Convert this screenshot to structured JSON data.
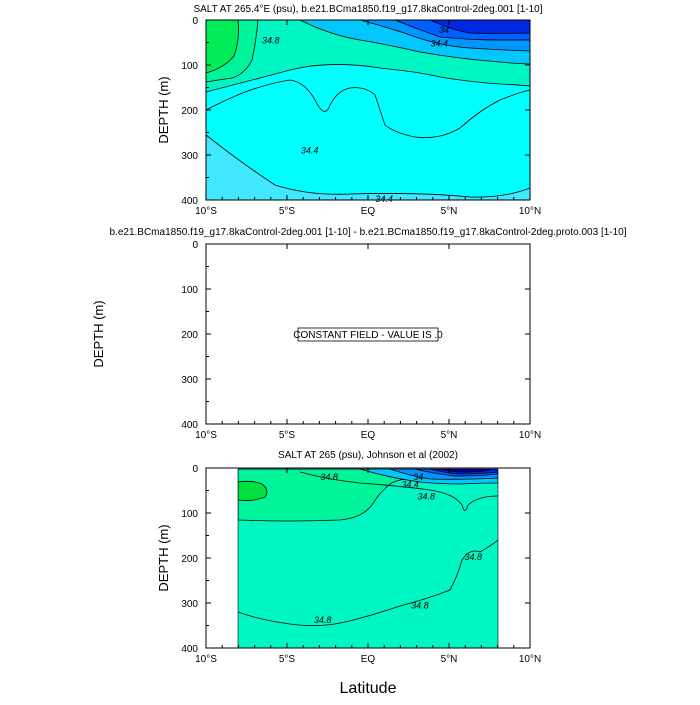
{
  "chart_data": [
    {
      "type": "contour",
      "title": "SALT AT 265.4°E (psu), b.e21.BCma1850.f19_g17.8kaControl-2deg.001 [1-10]",
      "ylabel": "DEPTH (m)",
      "xlabel": "",
      "xlim": [
        -10,
        10
      ],
      "ylim": [
        400,
        0
      ],
      "x_ticks": [
        -10,
        -5,
        0,
        5,
        10
      ],
      "x_tick_labels": [
        "10°S",
        "5°S",
        "EQ",
        "5°N",
        "10°N"
      ],
      "y_ticks": [
        0,
        100,
        200,
        300,
        400
      ],
      "y_tick_labels": [
        "0",
        "100",
        "200",
        "300",
        "400"
      ],
      "contour_labels": [
        {
          "text": "34.8",
          "lat": -6.0,
          "depth": 45
        },
        {
          "text": "34",
          "lat": 4.7,
          "depth": 22
        },
        {
          "text": "34.4",
          "lat": 4.4,
          "depth": 52
        },
        {
          "text": "34.4",
          "lat": -3.6,
          "depth": 290
        },
        {
          "text": "34.4",
          "lat": 1.0,
          "depth": 398
        }
      ]
    },
    {
      "type": "contour",
      "title": "b.e21.BCma1850.f19_g17.8kaControl-2deg.001 [1-10] - b.e21.BCma1850.f19_g17.8kaControl-2deg.proto.003 [1-10]",
      "ylabel": "DEPTH (m)",
      "xlabel": "",
      "xlim": [
        -10,
        10
      ],
      "ylim": [
        400,
        0
      ],
      "x_ticks": [
        -10,
        -5,
        0,
        5,
        10
      ],
      "x_tick_labels": [
        "10°S",
        "5°S",
        "EQ",
        "5°N",
        "10°N"
      ],
      "y_ticks": [
        0,
        100,
        200,
        300,
        400
      ],
      "y_tick_labels": [
        "0",
        "100",
        "200",
        "300",
        "400"
      ],
      "annotation": "CONSTANT FIELD - VALUE IS .0"
    },
    {
      "type": "contour",
      "title": "SALT AT 265 (psu), Johnson et al (2002)",
      "ylabel": "DEPTH (m)",
      "xlabel": "Latitude",
      "xlim": [
        -10,
        10
      ],
      "ylim": [
        400,
        0
      ],
      "data_extent_lat": [
        -8,
        8
      ],
      "data_extent_depth": [
        10,
        400
      ],
      "x_ticks": [
        -10,
        -5,
        0,
        5,
        10
      ],
      "x_tick_labels": [
        "10°S",
        "5°S",
        "EQ",
        "5°N",
        "10°N"
      ],
      "y_ticks": [
        0,
        100,
        200,
        300,
        400
      ],
      "y_tick_labels": [
        "0",
        "100",
        "200",
        "300",
        "400"
      ],
      "contour_labels": [
        {
          "text": "34.8",
          "lat": -2.4,
          "depth": 20
        },
        {
          "text": "34",
          "lat": 3.1,
          "depth": 20
        },
        {
          "text": "34.4",
          "lat": 2.6,
          "depth": 37
        },
        {
          "text": "34.8",
          "lat": 3.6,
          "depth": 63
        },
        {
          "text": "34.8",
          "lat": 6.5,
          "depth": 198
        },
        {
          "text": "34.8",
          "lat": 3.2,
          "depth": 305
        },
        {
          "text": "34.8",
          "lat": -2.8,
          "depth": 338
        }
      ]
    }
  ],
  "colors": {
    "cyan": "#00ffff",
    "light_blue": "#40e8ff",
    "aqua_green": "#00f7c4",
    "green_teal": "#00f49a",
    "green": "#00ec58",
    "bright_green": "#00e140",
    "blue1": "#00c8ff",
    "blue2": "#0096ff",
    "blue3": "#0060ff",
    "blue4": "#0028e6",
    "blue5": "#0000b4"
  }
}
